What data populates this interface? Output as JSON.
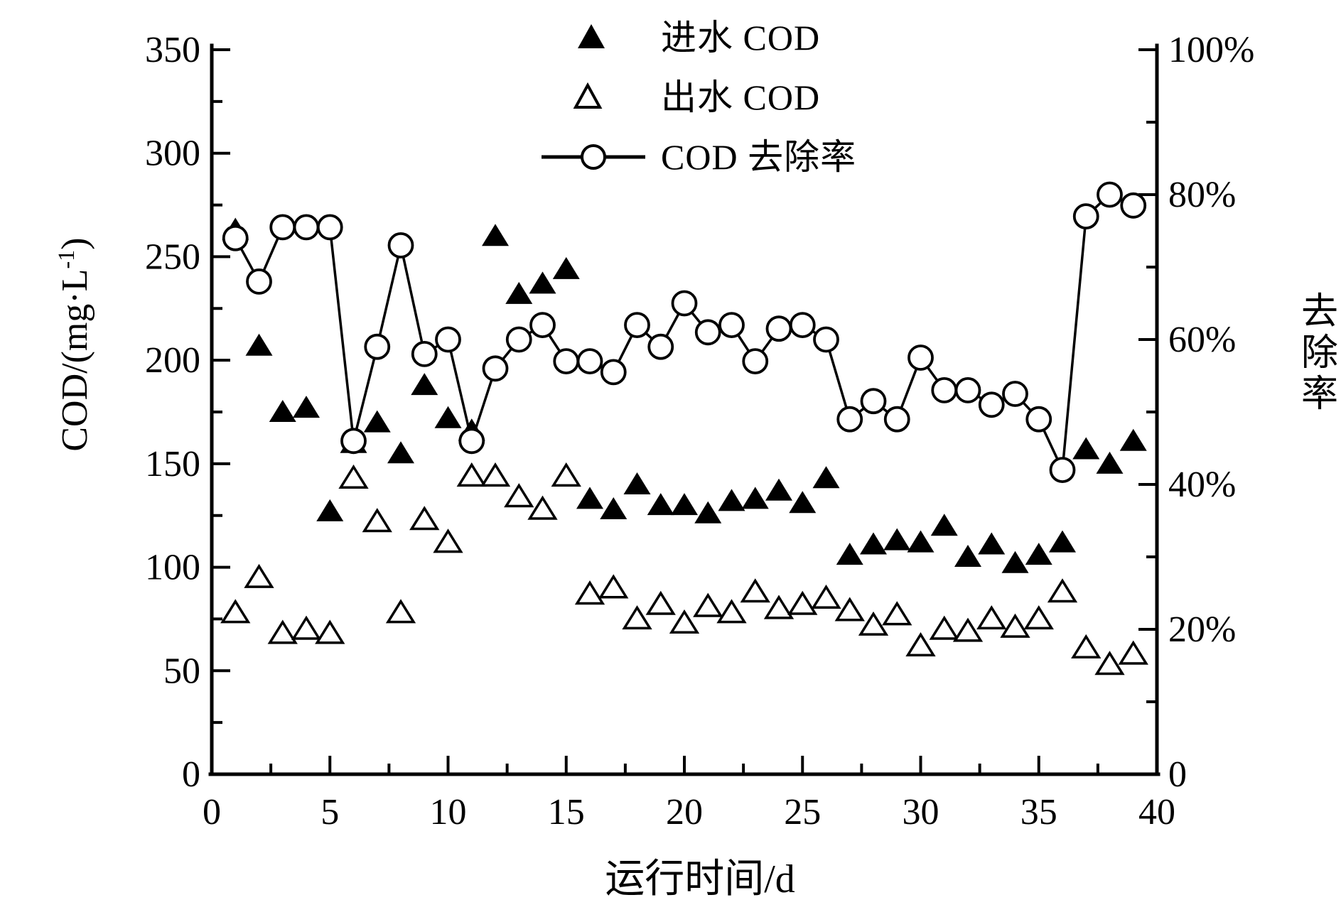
{
  "figure": {
    "background": "#ffffff",
    "ink": "#000000"
  },
  "legend": {
    "items": [
      {
        "label": "进水 COD",
        "marker": "filled-triangle"
      },
      {
        "label": "出水 COD",
        "marker": "open-triangle"
      },
      {
        "label": "COD 去除率",
        "marker": "line-circle"
      }
    ]
  },
  "axes": {
    "x": {
      "title": "运行时间/d",
      "tick_values": [
        0,
        5,
        10,
        15,
        20,
        25,
        30,
        35,
        40
      ],
      "tick_labels": [
        "0",
        "5",
        "10",
        "15",
        "20",
        "25",
        "30",
        "35",
        "40"
      ],
      "minor_step": 2.5
    },
    "y_left": {
      "title_pre": "COD/(mg·L",
      "title_sup": "-1",
      "title_post": ")",
      "tick_values": [
        0,
        50,
        100,
        150,
        200,
        250,
        300,
        350
      ],
      "tick_labels": [
        "0",
        "50",
        "100",
        "150",
        "200",
        "250",
        "300",
        "350"
      ],
      "minor_step": 25
    },
    "y_right": {
      "title": "去除率",
      "tick_values": [
        0,
        20,
        40,
        60,
        80,
        100
      ],
      "tick_labels": [
        "0",
        "20%",
        "40%",
        "60%",
        "80%",
        "100%"
      ],
      "minor_step": 10
    }
  },
  "chart_data": {
    "type": "scatter",
    "title": "",
    "xlabel": "运行时间/d",
    "ylabel_left": "COD/(mg·L-1)",
    "ylabel_right": "去除率",
    "xlim": [
      0,
      40
    ],
    "ylim_left": [
      0,
      350
    ],
    "ylim_right": [
      0,
      100
    ],
    "grid": false,
    "legend_position": "top-center",
    "x": [
      1,
      2,
      3,
      4,
      5,
      6,
      7,
      8,
      9,
      10,
      11,
      12,
      13,
      14,
      15,
      16,
      17,
      18,
      19,
      20,
      21,
      22,
      23,
      24,
      25,
      26,
      27,
      28,
      29,
      30,
      31,
      32,
      33,
      34,
      35,
      36,
      37,
      38,
      39
    ],
    "series": [
      {
        "name": "进水 COD",
        "axis": "left",
        "marker": "filled-triangle",
        "line": false,
        "values": [
          263,
          207,
          175,
          177,
          127,
          160,
          170,
          155,
          188,
          172,
          166,
          260,
          232,
          237,
          244,
          133,
          128,
          140,
          130,
          130,
          126,
          132,
          133,
          137,
          131,
          143,
          106,
          111,
          113,
          112,
          120,
          105,
          111,
          102,
          106,
          112,
          157,
          150,
          161
        ]
      },
      {
        "name": "出水 COD",
        "axis": "left",
        "marker": "open-triangle",
        "line": false,
        "values": [
          78,
          95,
          68,
          70,
          68,
          143,
          122,
          78,
          123,
          112,
          144,
          144,
          134,
          128,
          144,
          87,
          90,
          75,
          82,
          73,
          81,
          78,
          88,
          80,
          82,
          85,
          79,
          72,
          77,
          62,
          70,
          69,
          75,
          71,
          75,
          88,
          61,
          53,
          58
        ]
      },
      {
        "name": "COD 去除率",
        "axis": "right",
        "marker": "open-circle",
        "line": true,
        "values": [
          74,
          68,
          75.5,
          75.5,
          75.5,
          46,
          59,
          73,
          58,
          60,
          46,
          56,
          60,
          62,
          57,
          57,
          55.5,
          62,
          59,
          65,
          61,
          62,
          57,
          61.5,
          62,
          60,
          49,
          51.5,
          49,
          57.5,
          53,
          53,
          51,
          52.5,
          49,
          42,
          77,
          80,
          78.5
        ]
      }
    ]
  }
}
